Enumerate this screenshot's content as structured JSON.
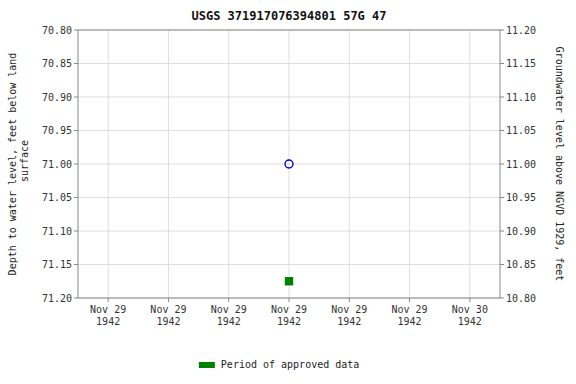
{
  "chart_data": {
    "type": "scatter",
    "title": "USGS 371917076394801 57G 47",
    "ylabel": "Depth to water level, feet below land\n surface",
    "y2label": "Groundwater level above NGVD 1929, feet",
    "categories": [
      "Nov 29\n1942",
      "Nov 29\n1942",
      "Nov 29\n1942",
      "Nov 29\n1942",
      "Nov 29\n1942",
      "Nov 29\n1942",
      "Nov 30\n1942"
    ],
    "series": [
      {
        "color": "#0000cc",
        "marker": "open-circle",
        "values": [
          null,
          null,
          null,
          71.0,
          null,
          null,
          null
        ]
      },
      {
        "name": "Period of approved data",
        "color": "#008000",
        "marker": "square",
        "values": [
          null,
          null,
          null,
          71.175,
          null,
          null,
          null
        ]
      }
    ],
    "ylim": [
      71.2,
      70.8
    ],
    "yticks": [
      {
        "value": 70.8,
        "label": "70.80"
      },
      {
        "value": 70.85,
        "label": "70.85"
      },
      {
        "value": 70.9,
        "label": "70.90"
      },
      {
        "value": 70.95,
        "label": "70.95"
      },
      {
        "value": 71.0,
        "label": "71.00"
      },
      {
        "value": 71.05,
        "label": "71.05"
      },
      {
        "value": 71.1,
        "label": "71.10"
      },
      {
        "value": 71.15,
        "label": "71.15"
      },
      {
        "value": 71.2,
        "label": "71.20"
      }
    ],
    "y2lim": [
      10.8,
      11.2
    ],
    "y2ticks": [
      {
        "value": 11.2,
        "label": "11.20"
      },
      {
        "value": 11.15,
        "label": "11.15"
      },
      {
        "value": 11.1,
        "label": "11.10"
      },
      {
        "value": 11.05,
        "label": "11.05"
      },
      {
        "value": 11.0,
        "label": "11.00"
      },
      {
        "value": 10.95,
        "label": "10.95"
      },
      {
        "value": 10.9,
        "label": "10.90"
      },
      {
        "value": 10.85,
        "label": "10.85"
      },
      {
        "value": 10.8,
        "label": "10.80"
      }
    ],
    "grid": true,
    "legend": "bottom"
  }
}
